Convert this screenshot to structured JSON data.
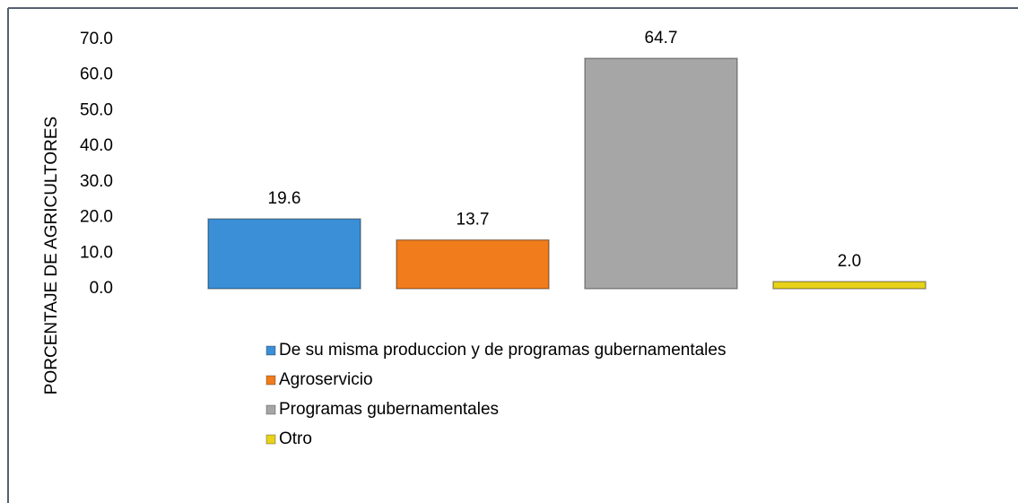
{
  "chart_data": {
    "type": "bar",
    "y_label": "PORCENTAJE DE AGRICULTORES",
    "series": [
      {
        "name": "De su misma produccion y de programas gubernamentales",
        "color": "#3a8fd6",
        "values": [
          19.6
        ],
        "value_labels": [
          "19.6"
        ]
      },
      {
        "name": "Agroservicio",
        "color": "#f07c1c",
        "values": [
          13.7
        ],
        "value_labels": [
          "13.7"
        ]
      },
      {
        "name": "Programas gubernamentales",
        "color": "#a6a6a6",
        "values": [
          64.7
        ],
        "value_labels": [
          "64.7"
        ]
      },
      {
        "name": "Otro",
        "color": "#e8d21a",
        "values": [
          2.0
        ],
        "value_labels": [
          "2.0"
        ]
      }
    ],
    "ylim": [
      0,
      70
    ],
    "yticks": [
      {
        "value": 0,
        "label": "0.0"
      },
      {
        "value": 10,
        "label": "10.0"
      },
      {
        "value": 20,
        "label": "20.0"
      },
      {
        "value": 30,
        "label": "30.0"
      },
      {
        "value": 40,
        "label": "40.0"
      },
      {
        "value": 50,
        "label": "50.0"
      },
      {
        "value": 60,
        "label": "60.0"
      },
      {
        "value": 70,
        "label": "70.0"
      }
    ],
    "grid": false,
    "legend": "bottom"
  }
}
